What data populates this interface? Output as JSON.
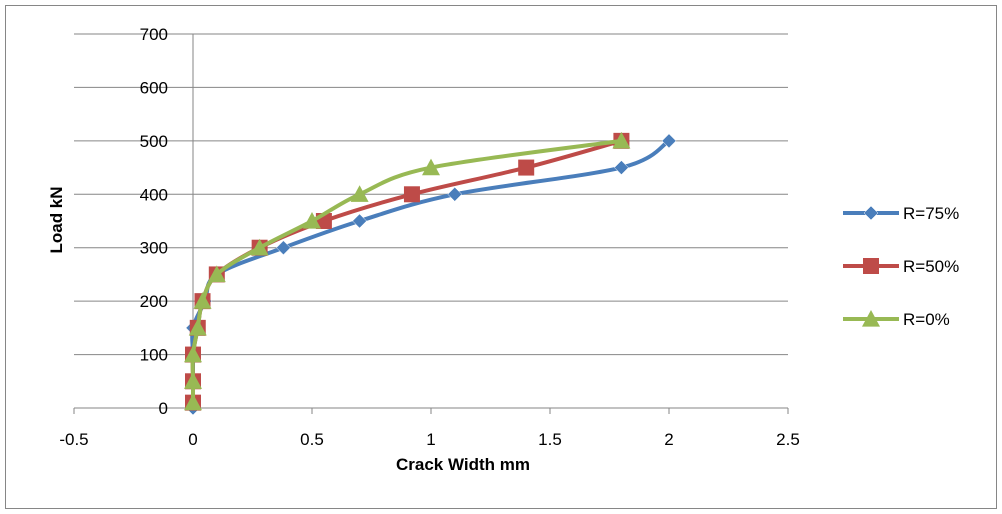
{
  "chart_data": {
    "type": "line",
    "title": "",
    "xlabel": "Crack Width mm",
    "ylabel": "Load kN",
    "xlim": [
      -0.5,
      2.5
    ],
    "ylim": [
      0,
      700
    ],
    "xticks": [
      -0.5,
      0,
      0.5,
      1,
      1.5,
      2,
      2.5
    ],
    "yticks": [
      0,
      100,
      200,
      300,
      400,
      500,
      600,
      700
    ],
    "xtick_labels": [
      "-0.5",
      "0",
      "0.5",
      "1",
      "1.5",
      "2",
      "2.5"
    ],
    "ytick_labels": [
      "0",
      "100",
      "200",
      "300",
      "400",
      "500",
      "600",
      "700"
    ],
    "grid": "horizontal",
    "legend_position": "right",
    "series": [
      {
        "name": "R=75%",
        "color": "#4a7ebb",
        "marker": "diamond",
        "x": [
          0,
          0,
          0,
          0,
          0.05,
          0.1,
          0.38,
          0.7,
          1.1,
          1.8,
          2.0
        ],
        "y": [
          0,
          50,
          100,
          150,
          200,
          250,
          300,
          350,
          400,
          450,
          500
        ]
      },
      {
        "name": "R=50%",
        "color": "#be4b48",
        "marker": "square",
        "x": [
          0,
          0,
          0,
          0.02,
          0.04,
          0.1,
          0.28,
          0.55,
          0.92,
          1.4,
          1.8
        ],
        "y": [
          10,
          50,
          100,
          150,
          200,
          250,
          300,
          350,
          400,
          450,
          500
        ]
      },
      {
        "name": "R=0%",
        "color": "#98b954",
        "marker": "triangle",
        "x": [
          0,
          0,
          0,
          0.02,
          0.04,
          0.1,
          0.28,
          0.5,
          0.7,
          1.0,
          1.8
        ],
        "y": [
          10,
          50,
          100,
          150,
          200,
          250,
          300,
          350,
          400,
          450,
          500
        ]
      }
    ]
  }
}
